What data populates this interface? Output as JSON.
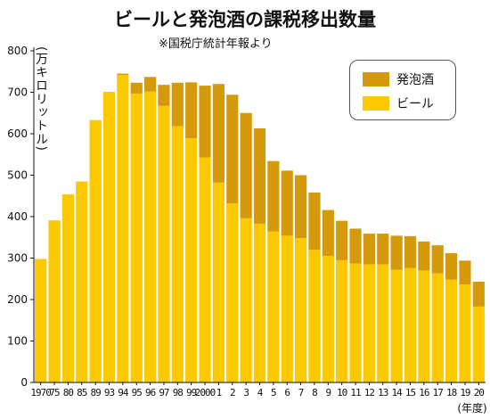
{
  "chart_data": {
    "type": "bar",
    "stacked": true,
    "title": "ビールと発泡酒の課税移出数量",
    "subtitle": "※国税庁統計年報より",
    "ylabel": "(万キロリットル)",
    "xlabel": "(年度)",
    "ylim": [
      0,
      800
    ],
    "yticks": [
      0,
      100,
      200,
      300,
      400,
      500,
      600,
      700,
      800
    ],
    "categories": [
      "1970",
      "75",
      "80",
      "85",
      "89",
      "93",
      "94",
      "95",
      "96",
      "97",
      "98",
      "99",
      "2000",
      "01",
      "02",
      "03",
      "04",
      "05",
      "06",
      "07",
      "08",
      "09",
      "10",
      "11",
      "12",
      "13",
      "14",
      "15",
      "16",
      "17",
      "18",
      "19",
      "20"
    ],
    "tick_labels": [
      "1970",
      "75",
      "80",
      "85",
      "89",
      "93",
      "94",
      "95",
      "96",
      "97",
      "98",
      "99",
      "2000",
      "1",
      "2",
      "3",
      "4",
      "5",
      "6",
      "7",
      "8",
      "9",
      "10",
      "11",
      "12",
      "13",
      "14",
      "15",
      "16",
      "17",
      "18",
      "19",
      "20"
    ],
    "series": [
      {
        "name": "ビール",
        "color": "#fcc800",
        "values": [
          298,
          391,
          454,
          485,
          633,
          701,
          742,
          697,
          702,
          667,
          618,
          589,
          543,
          482,
          432,
          396,
          383,
          364,
          354,
          348,
          320,
          305,
          295,
          287,
          285,
          285,
          272,
          276,
          270,
          263,
          248,
          236,
          183
        ]
      },
      {
        "name": "発泡酒",
        "color": "#d49a0b",
        "values": [
          0,
          0,
          0,
          0,
          0,
          0,
          3,
          26,
          35,
          51,
          105,
          135,
          173,
          238,
          262,
          254,
          230,
          170,
          157,
          152,
          138,
          111,
          95,
          84,
          74,
          74,
          82,
          77,
          70,
          68,
          64,
          58,
          60
        ]
      }
    ],
    "legend_position": "top-right",
    "grid": false
  }
}
